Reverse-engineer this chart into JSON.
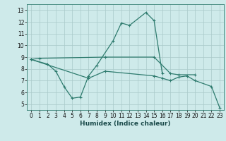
{
  "title": "",
  "xlabel": "Humidex (Indice chaleur)",
  "series1_x": [
    0,
    1,
    9,
    15,
    17,
    18,
    20
  ],
  "series1_y": [
    8.8,
    8.9,
    9.0,
    9.0,
    7.6,
    7.5,
    7.5
  ],
  "series2_x": [
    0,
    2,
    3,
    4,
    5,
    6,
    7,
    8,
    10,
    11,
    12,
    14,
    15,
    16
  ],
  "series2_y": [
    8.8,
    8.4,
    7.8,
    6.5,
    5.5,
    5.6,
    7.4,
    8.3,
    10.4,
    11.9,
    11.7,
    12.8,
    12.1,
    7.6
  ],
  "series3_x": [
    0,
    7,
    9,
    15,
    16,
    17,
    18,
    19,
    20,
    22,
    23
  ],
  "series3_y": [
    8.8,
    7.2,
    7.8,
    7.4,
    7.2,
    7.0,
    7.3,
    7.4,
    7.0,
    6.5,
    4.7
  ],
  "color": "#2e7b6e",
  "bg_color": "#ceeaea",
  "grid_color": "#aacaca",
  "ylim": [
    4.5,
    13.5
  ],
  "xlim": [
    -0.5,
    23.5
  ],
  "yticks": [
    5,
    6,
    7,
    8,
    9,
    10,
    11,
    12,
    13
  ],
  "xticks": [
    0,
    1,
    2,
    3,
    4,
    5,
    6,
    7,
    8,
    9,
    10,
    11,
    12,
    13,
    14,
    15,
    16,
    17,
    18,
    19,
    20,
    21,
    22,
    23
  ],
  "xlabel_fontsize": 6.5,
  "tick_fontsize": 5.5,
  "linewidth": 0.9,
  "markersize": 3.5
}
